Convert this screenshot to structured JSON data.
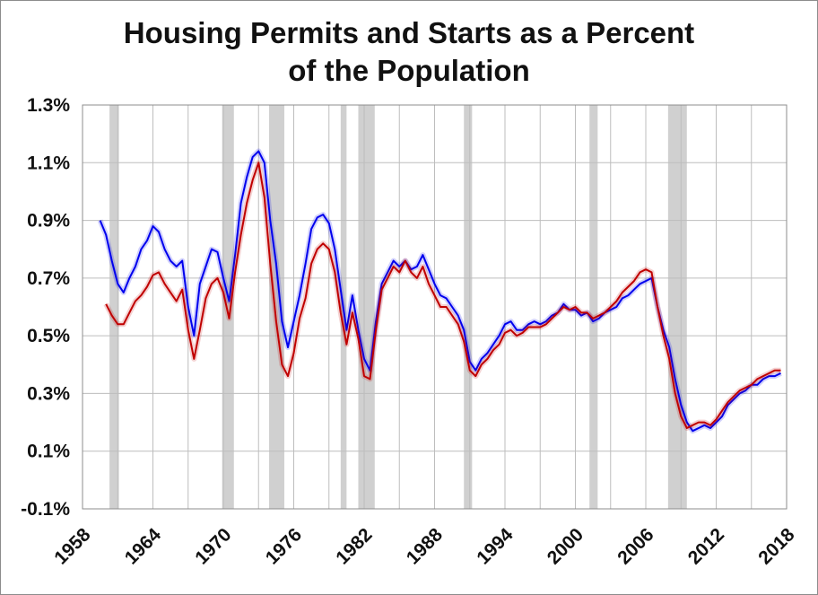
{
  "chart_data": {
    "type": "line",
    "title": [
      "Housing Permits and Starts as a Percent",
      "of the Population"
    ],
    "xlabel": "",
    "ylabel": "",
    "xlim": [
      1958,
      2018
    ],
    "ylim": [
      -0.1,
      1.3
    ],
    "x_ticks": [
      1958,
      1964,
      1970,
      1976,
      1982,
      1988,
      1994,
      2000,
      2006,
      2012,
      2018
    ],
    "x_tick_labels": [
      "1958",
      "1964",
      "1970",
      "1976",
      "1982",
      "1988",
      "1994",
      "2000",
      "2006",
      "2012",
      "2018"
    ],
    "y_ticks": [
      -0.1,
      0.1,
      0.3,
      0.5,
      0.7,
      0.9,
      1.1,
      1.3
    ],
    "y_tick_labels": [
      "-0.1%",
      "0.1%",
      "0.3%",
      "0.5%",
      "0.7%",
      "0.9%",
      "1.1%",
      "1.3%"
    ],
    "grid": true,
    "recessions": [
      [
        1960.3,
        1961.1
      ],
      [
        1969.9,
        1970.9
      ],
      [
        1973.9,
        1975.2
      ],
      [
        1980.0,
        1980.5
      ],
      [
        1981.5,
        1982.9
      ],
      [
        1990.5,
        1991.2
      ],
      [
        2001.2,
        2001.9
      ],
      [
        2007.9,
        2009.5
      ]
    ],
    "series": [
      {
        "name": "Permits",
        "color": "#0000ee",
        "x": [
          1959.5,
          1960.0,
          1960.5,
          1961.0,
          1961.5,
          1962.0,
          1962.5,
          1963.0,
          1963.5,
          1964.0,
          1964.5,
          1965.0,
          1965.5,
          1966.0,
          1966.5,
          1967.0,
          1967.5,
          1968.0,
          1968.5,
          1969.0,
          1969.5,
          1970.0,
          1970.5,
          1971.0,
          1971.5,
          1972.0,
          1972.5,
          1973.0,
          1973.5,
          1974.0,
          1974.5,
          1975.0,
          1975.5,
          1976.0,
          1976.5,
          1977.0,
          1977.5,
          1978.0,
          1978.5,
          1979.0,
          1979.5,
          1980.0,
          1980.5,
          1981.0,
          1981.5,
          1982.0,
          1982.5,
          1983.0,
          1983.5,
          1984.0,
          1984.5,
          1985.0,
          1985.5,
          1986.0,
          1986.5,
          1987.0,
          1987.5,
          1988.0,
          1988.5,
          1989.0,
          1989.5,
          1990.0,
          1990.5,
          1991.0,
          1991.5,
          1992.0,
          1992.5,
          1993.0,
          1993.5,
          1994.0,
          1994.5,
          1995.0,
          1995.5,
          1996.0,
          1996.5,
          1997.0,
          1997.5,
          1998.0,
          1998.5,
          1999.0,
          1999.5,
          2000.0,
          2000.5,
          2001.0,
          2001.5,
          2002.0,
          2002.5,
          2003.0,
          2003.5,
          2004.0,
          2004.5,
          2005.0,
          2005.5,
          2006.0,
          2006.5,
          2007.0,
          2007.5,
          2008.0,
          2008.5,
          2009.0,
          2009.5,
          2010.0,
          2010.5,
          2011.0,
          2011.5,
          2012.0,
          2012.5,
          2013.0,
          2013.5,
          2014.0,
          2014.5,
          2015.0,
          2015.5,
          2016.0,
          2016.5,
          2017.0,
          2017.5
        ],
        "values": [
          0.9,
          0.85,
          0.76,
          0.68,
          0.65,
          0.7,
          0.74,
          0.8,
          0.83,
          0.88,
          0.86,
          0.8,
          0.76,
          0.74,
          0.76,
          0.6,
          0.5,
          0.68,
          0.74,
          0.8,
          0.79,
          0.7,
          0.62,
          0.78,
          0.96,
          1.05,
          1.12,
          1.14,
          1.1,
          0.9,
          0.75,
          0.55,
          0.46,
          0.55,
          0.64,
          0.75,
          0.87,
          0.91,
          0.92,
          0.89,
          0.8,
          0.66,
          0.52,
          0.64,
          0.52,
          0.42,
          0.38,
          0.55,
          0.68,
          0.72,
          0.76,
          0.74,
          0.76,
          0.73,
          0.74,
          0.78,
          0.73,
          0.68,
          0.64,
          0.63,
          0.6,
          0.57,
          0.52,
          0.41,
          0.38,
          0.42,
          0.44,
          0.47,
          0.5,
          0.54,
          0.55,
          0.52,
          0.52,
          0.54,
          0.55,
          0.54,
          0.55,
          0.57,
          0.58,
          0.61,
          0.59,
          0.59,
          0.57,
          0.58,
          0.55,
          0.56,
          0.58,
          0.59,
          0.6,
          0.63,
          0.64,
          0.66,
          0.68,
          0.69,
          0.7,
          0.6,
          0.52,
          0.46,
          0.35,
          0.26,
          0.2,
          0.17,
          0.18,
          0.19,
          0.18,
          0.2,
          0.22,
          0.26,
          0.28,
          0.3,
          0.31,
          0.33,
          0.33,
          0.35,
          0.36,
          0.36,
          0.37
        ]
      },
      {
        "name": "Starts",
        "color": "#c00000",
        "x": [
          1960.0,
          1960.5,
          1961.0,
          1961.5,
          1962.0,
          1962.5,
          1963.0,
          1963.5,
          1964.0,
          1964.5,
          1965.0,
          1965.5,
          1966.0,
          1966.5,
          1967.0,
          1967.5,
          1968.0,
          1968.5,
          1969.0,
          1969.5,
          1970.0,
          1970.5,
          1971.0,
          1971.5,
          1972.0,
          1972.5,
          1973.0,
          1973.5,
          1974.0,
          1974.5,
          1975.0,
          1975.5,
          1976.0,
          1976.5,
          1977.0,
          1977.5,
          1978.0,
          1978.5,
          1979.0,
          1979.5,
          1980.0,
          1980.5,
          1981.0,
          1981.5,
          1982.0,
          1982.5,
          1983.0,
          1983.5,
          1984.0,
          1984.5,
          1985.0,
          1985.5,
          1986.0,
          1986.5,
          1987.0,
          1987.5,
          1988.0,
          1988.5,
          1989.0,
          1989.5,
          1990.0,
          1990.5,
          1991.0,
          1991.5,
          1992.0,
          1992.5,
          1993.0,
          1993.5,
          1994.0,
          1994.5,
          1995.0,
          1995.5,
          1996.0,
          1996.5,
          1997.0,
          1997.5,
          1998.0,
          1998.5,
          1999.0,
          1999.5,
          2000.0,
          2000.5,
          2001.0,
          2001.5,
          2002.0,
          2002.5,
          2003.0,
          2003.5,
          2004.0,
          2004.5,
          2005.0,
          2005.5,
          2006.0,
          2006.5,
          2007.0,
          2007.5,
          2008.0,
          2008.5,
          2009.0,
          2009.5,
          2010.0,
          2010.5,
          2011.0,
          2011.5,
          2012.0,
          2012.5,
          2013.0,
          2013.5,
          2014.0,
          2014.5,
          2015.0,
          2015.5,
          2016.0,
          2016.5,
          2017.0,
          2017.5
        ],
        "values": [
          0.61,
          0.57,
          0.54,
          0.54,
          0.58,
          0.62,
          0.64,
          0.67,
          0.71,
          0.72,
          0.68,
          0.65,
          0.62,
          0.66,
          0.52,
          0.42,
          0.52,
          0.63,
          0.68,
          0.7,
          0.65,
          0.56,
          0.72,
          0.85,
          0.96,
          1.04,
          1.1,
          0.98,
          0.75,
          0.55,
          0.4,
          0.36,
          0.44,
          0.56,
          0.63,
          0.75,
          0.8,
          0.82,
          0.8,
          0.72,
          0.58,
          0.47,
          0.58,
          0.49,
          0.36,
          0.35,
          0.52,
          0.66,
          0.7,
          0.74,
          0.72,
          0.76,
          0.72,
          0.7,
          0.74,
          0.68,
          0.64,
          0.6,
          0.6,
          0.57,
          0.54,
          0.48,
          0.38,
          0.36,
          0.4,
          0.42,
          0.45,
          0.47,
          0.51,
          0.52,
          0.5,
          0.51,
          0.53,
          0.53,
          0.53,
          0.54,
          0.56,
          0.58,
          0.6,
          0.59,
          0.6,
          0.58,
          0.58,
          0.56,
          0.57,
          0.58,
          0.6,
          0.62,
          0.65,
          0.67,
          0.69,
          0.72,
          0.73,
          0.72,
          0.6,
          0.5,
          0.42,
          0.3,
          0.22,
          0.18,
          0.19,
          0.2,
          0.2,
          0.19,
          0.21,
          0.24,
          0.27,
          0.29,
          0.31,
          0.32,
          0.33,
          0.35,
          0.36,
          0.37,
          0.38,
          0.38
        ]
      }
    ]
  }
}
